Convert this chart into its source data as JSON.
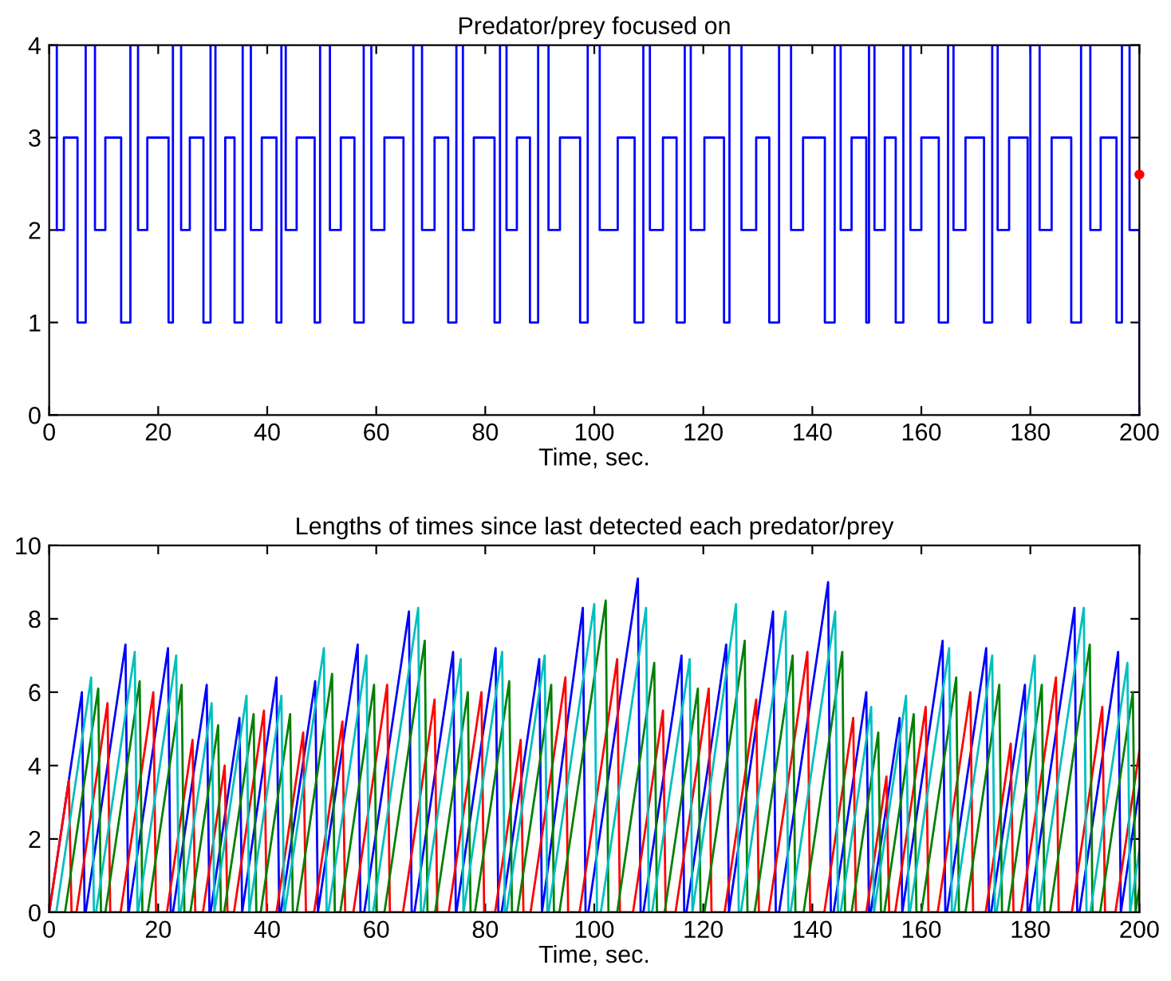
{
  "chart_data": [
    {
      "type": "step",
      "title": "Predator/prey focused on",
      "xlabel": "Time, sec.",
      "xlim": [
        0,
        200
      ],
      "ylim": [
        0,
        4
      ],
      "xticks": [
        0,
        20,
        40,
        60,
        80,
        100,
        120,
        140,
        160,
        180,
        200
      ],
      "yticks": [
        0,
        1,
        2,
        3,
        4
      ],
      "grid": false,
      "legend": false,
      "series": [
        {
          "color": "#0000ff",
          "x": [
            0,
            1.4,
            2.7,
            5.2,
            6.7,
            8.4,
            10.3,
            13.2,
            14.9,
            16.3,
            18.0,
            21.9,
            22.7,
            24.2,
            25.8,
            28.3,
            29.6,
            30.5,
            32.3,
            34.0,
            35.5,
            37.0,
            39.0,
            41.7,
            42.6,
            43.4,
            45.4,
            48.7,
            49.7,
            51.5,
            53.5,
            56.0,
            57.7,
            59.1,
            61.5,
            65.0,
            66.8,
            68.4,
            70.7,
            73.2,
            74.7,
            75.9,
            77.9,
            81.7,
            82.7,
            83.9,
            85.8,
            88.2,
            89.7,
            91.6,
            93.7,
            97.4,
            98.8,
            101.0,
            104.3,
            107.4,
            109.0,
            110.2,
            112.6,
            115.1,
            116.6,
            117.7,
            120.2,
            123.8,
            124.8,
            127.0,
            129.7,
            132.1,
            133.9,
            136.1,
            138.3,
            142.3,
            144.1,
            145.2,
            147.2,
            149.9,
            150.4,
            151.4,
            153.3,
            155.3,
            156.7,
            158.0,
            160.0,
            163.2,
            164.9,
            165.9,
            168.1,
            171.5,
            173.0,
            174.0,
            176.1,
            179.5,
            180.0,
            181.7,
            183.9,
            187.5,
            189.3,
            191.0,
            192.9,
            195.8,
            196.8,
            198.2,
            200
          ],
          "values": [
            4,
            2,
            3,
            1,
            4,
            2,
            3,
            1,
            4,
            2,
            3,
            1,
            4,
            2,
            3,
            1,
            4,
            2,
            3,
            1,
            4,
            2,
            3,
            1,
            4,
            2,
            3,
            1,
            4,
            2,
            3,
            1,
            4,
            2,
            3,
            1,
            4,
            2,
            3,
            1,
            4,
            2,
            3,
            1,
            4,
            2,
            3,
            1,
            4,
            2,
            3,
            1,
            4,
            2,
            3,
            1,
            4,
            2,
            3,
            1,
            4,
            2,
            3,
            1,
            4,
            2,
            3,
            1,
            4,
            2,
            3,
            1,
            4,
            2,
            3,
            1,
            4,
            2,
            3,
            1,
            4,
            2,
            3,
            1,
            4,
            2,
            3,
            1,
            4,
            2,
            3,
            1,
            4,
            2,
            3,
            1,
            4,
            2,
            3,
            1,
            4,
            2,
            0
          ]
        },
        {
          "type": "scatter",
          "color": "#ff0000",
          "marker": "circle",
          "x": [
            200
          ],
          "values": [
            2.6
          ]
        }
      ]
    },
    {
      "type": "line",
      "title": "Lengths of times since last detected each predator/prey",
      "xlabel": "Time, sec.",
      "xlim": [
        0,
        200
      ],
      "ylim": [
        0,
        10
      ],
      "xticks": [
        0,
        20,
        40,
        60,
        80,
        100,
        120,
        140,
        160,
        180,
        200
      ],
      "yticks": [
        0,
        2,
        4,
        6,
        8,
        10
      ],
      "grid": false,
      "legend": false,
      "series": [
        {
          "color": "#0000ff",
          "x": [
            0,
            6.0,
            6.5,
            6.7,
            14.0,
            14.5,
            14.6,
            21.8,
            22.3,
            22.7,
            28.9,
            29.4,
            29.6,
            34.9,
            35.4,
            41.7,
            42.2,
            42.5,
            48.8,
            49.3,
            56.6,
            57.1,
            57.8,
            66.0,
            66.5,
            67.0,
            74.1,
            74.6,
            74.7,
            81.9,
            82.4,
            83.0,
            89.9,
            90.4,
            97.9,
            98.4,
            98.9,
            108.0,
            108.5,
            109.0,
            116.0,
            116.5,
            116.9,
            124.2,
            124.7,
            132.8,
            133.3,
            133.9,
            142.9,
            143.4,
            143.9,
            149.9,
            150.4,
            150.7,
            156.0,
            156.5,
            163.9,
            164.4,
            164.7,
            171.9,
            172.4,
            172.8,
            179.0,
            179.5,
            179.8,
            188.1,
            188.6,
            189.0,
            196.1,
            196.6,
            200
          ],
          "values": [
            0,
            6.0,
            0,
            0,
            7.3,
            0,
            0,
            7.2,
            0,
            0,
            6.2,
            0,
            0,
            5.3,
            0,
            6.4,
            0,
            0,
            6.3,
            0,
            7.3,
            0,
            0,
            8.2,
            0,
            0,
            7.1,
            0,
            0,
            7.2,
            0,
            0,
            6.9,
            0,
            8.3,
            0,
            0,
            9.1,
            0,
            0,
            7.0,
            0,
            0,
            7.3,
            0,
            8.2,
            0,
            0,
            9.0,
            0,
            0,
            6.0,
            0,
            0,
            5.3,
            0,
            7.4,
            0,
            0,
            7.2,
            0,
            0,
            6.2,
            0,
            0,
            8.3,
            0,
            0,
            7.1,
            0,
            3.4
          ]
        },
        {
          "color": "#ff0000",
          "x": [
            0,
            3.6,
            4.1,
            5.0,
            10.7,
            11.2,
            13.1,
            19.1,
            19.6,
            21.6,
            26.3,
            26.8,
            28.2,
            32.2,
            32.7,
            33.9,
            39.4,
            39.9,
            41.7,
            46.6,
            47.1,
            48.6,
            53.8,
            54.3,
            55.8,
            62.0,
            62.5,
            64.9,
            70.7,
            71.2,
            73.3,
            79.3,
            79.8,
            81.8,
            86.5,
            87.0,
            88.3,
            94.7,
            95.2,
            97.3,
            104.2,
            104.7,
            107.1,
            112.6,
            113.1,
            114.9,
            121.0,
            121.5,
            123.9,
            129.7,
            130.2,
            132.0,
            139.1,
            139.6,
            142.2,
            147.5,
            148.0,
            149.9,
            153.6,
            154.1,
            155.2,
            160.8,
            161.3,
            163.0,
            169.0,
            169.5,
            171.8,
            176.4,
            176.9,
            178.3,
            184.7,
            185.2,
            187.6,
            193.2,
            193.7,
            195.6,
            200
          ],
          "values": [
            0,
            3.6,
            0,
            0,
            5.7,
            0,
            0,
            6.0,
            0,
            0,
            4.7,
            0,
            0,
            4.0,
            0,
            0,
            5.5,
            0,
            0,
            4.9,
            0,
            0,
            5.2,
            0,
            0,
            6.2,
            0,
            0,
            5.8,
            0,
            0,
            6.0,
            0,
            0,
            4.7,
            0,
            0,
            6.4,
            0,
            0,
            6.9,
            0,
            0,
            5.5,
            0,
            0,
            6.1,
            0,
            0,
            5.8,
            0,
            0,
            7.1,
            0,
            0,
            5.3,
            0,
            0,
            3.7,
            0,
            0,
            5.6,
            0,
            0,
            6.0,
            0,
            0,
            4.6,
            0,
            0,
            6.4,
            0,
            0,
            5.6,
            0,
            0,
            4.4
          ]
        },
        {
          "color": "#008000",
          "x": [
            0,
            2.9,
            9.0,
            9.5,
            10.3,
            16.6,
            17.1,
            18.1,
            24.3,
            24.8,
            25.9,
            31.0,
            31.5,
            32.1,
            37.5,
            38.0,
            38.8,
            44.2,
            44.7,
            45.4,
            51.9,
            52.4,
            53.4,
            59.6,
            60.1,
            61.5,
            68.9,
            69.4,
            70.8,
            76.8,
            77.3,
            78.1,
            84.4,
            84.9,
            85.9,
            92.1,
            92.6,
            93.6,
            102.1,
            102.6,
            104.2,
            111.0,
            111.5,
            112.9,
            119.0,
            119.5,
            120.2,
            127.6,
            128.1,
            129.4,
            136.4,
            136.9,
            138.4,
            145.5,
            146.0,
            147.2,
            152.1,
            152.6,
            153.2,
            158.6,
            159.1,
            160.0,
            166.4,
            166.9,
            168.1,
            174.3,
            174.8,
            175.9,
            182.1,
            182.6,
            183.6,
            190.9,
            191.4,
            192.8,
            198.8,
            199.3,
            200
          ],
          "values": [
            0,
            0,
            6.1,
            0,
            0,
            6.3,
            0,
            0,
            6.2,
            0,
            0,
            5.1,
            0,
            0,
            5.4,
            0,
            0,
            5.4,
            0,
            0,
            6.5,
            0,
            0,
            6.2,
            0,
            0,
            7.4,
            0,
            0,
            6.0,
            0,
            0,
            6.3,
            0,
            0,
            6.2,
            0,
            0,
            8.5,
            0,
            0,
            6.8,
            0,
            0,
            6.1,
            0,
            0,
            7.4,
            0,
            0,
            7.0,
            0,
            0,
            7.1,
            0,
            0,
            4.9,
            0,
            0,
            5.4,
            0,
            0,
            6.4,
            0,
            0,
            6.2,
            0,
            0,
            6.2,
            0,
            0,
            7.3,
            0,
            0,
            6.0,
            0,
            0.7
          ]
        },
        {
          "color": "#00bfbf",
          "x": [
            0,
            1.3,
            7.7,
            8.2,
            8.6,
            15.7,
            16.2,
            16.3,
            23.3,
            23.8,
            24.1,
            29.8,
            30.3,
            36.2,
            36.7,
            42.6,
            43.1,
            43.2,
            50.4,
            50.9,
            51.2,
            58.2,
            58.7,
            59.4,
            67.7,
            68.2,
            68.6,
            75.5,
            76.0,
            83.1,
            83.6,
            83.9,
            90.9,
            91.4,
            91.6,
            100.0,
            100.5,
            101.2,
            109.5,
            110.0,
            110.6,
            117.5,
            118.0,
            126.0,
            126.5,
            126.9,
            135.1,
            135.6,
            136.0,
            144.2,
            144.7,
            145.2,
            150.8,
            151.3,
            157.2,
            157.7,
            157.9,
            165.1,
            165.6,
            166.0,
            173.0,
            173.5,
            173.8,
            180.8,
            181.3,
            181.5,
            189.8,
            190.3,
            191.0,
            197.8,
            198.3,
            200
          ],
          "values": [
            0,
            0,
            6.4,
            0,
            0,
            7.1,
            0,
            0,
            7.0,
            0,
            0,
            5.7,
            0,
            5.9,
            0,
            5.9,
            0,
            0,
            7.2,
            0,
            0,
            7.0,
            0,
            0,
            8.3,
            0,
            0,
            6.9,
            0,
            7.1,
            0,
            0,
            7.0,
            0,
            0,
            8.4,
            0,
            0,
            8.3,
            0,
            0,
            6.9,
            0,
            8.4,
            0,
            0,
            8.2,
            0,
            0,
            8.2,
            0,
            0,
            5.6,
            0,
            5.9,
            0,
            0,
            7.2,
            0,
            0,
            7.0,
            0,
            0,
            7.0,
            0,
            0,
            8.3,
            0,
            0,
            6.8,
            0,
            1.7
          ]
        }
      ]
    }
  ]
}
